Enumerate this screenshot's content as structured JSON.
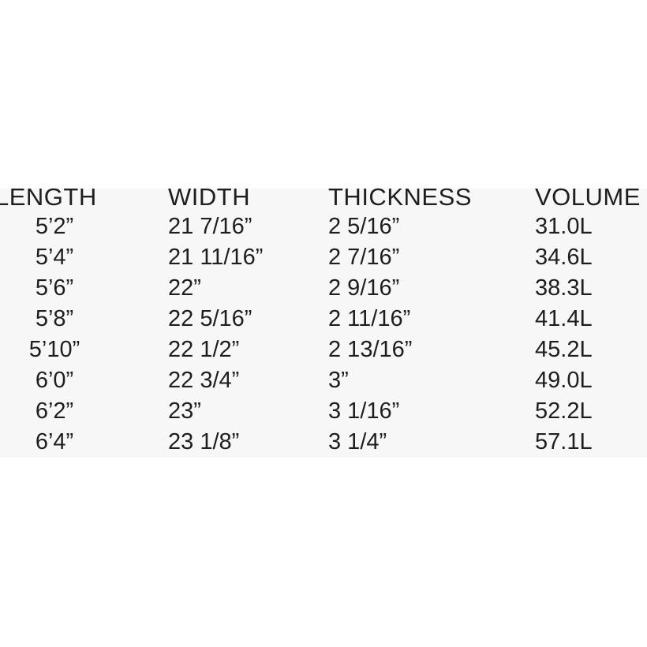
{
  "table": {
    "headers": [
      "LENGTH",
      "WIDTH",
      "THICKNESS",
      "VOLUME"
    ],
    "columns": [
      [
        "5’2”",
        "5’4”",
        "5’6”",
        "5’8”",
        "5’10”",
        "6’0”",
        "6’2”",
        "6’4”"
      ],
      [
        "21 7/16”",
        "21 11/16”",
        "22”",
        "22 5/16”",
        "22 1/2”",
        "22 3/4”",
        "23”",
        "23 1/8”"
      ],
      [
        "2 5/16”",
        "2 7/16”",
        "2 9/16”",
        "2 11/16”",
        "2 13/16”",
        "3”",
        "3 1/16”",
        "3 1/4”"
      ],
      [
        "31.0L",
        "34.6L",
        "38.3L",
        "41.4L",
        "45.2L",
        "49.0L",
        "52.2L",
        "57.1L"
      ]
    ]
  },
  "colors": {
    "text": "#1e1e1e",
    "band": "#f7f7f7",
    "background": "#ffffff"
  }
}
